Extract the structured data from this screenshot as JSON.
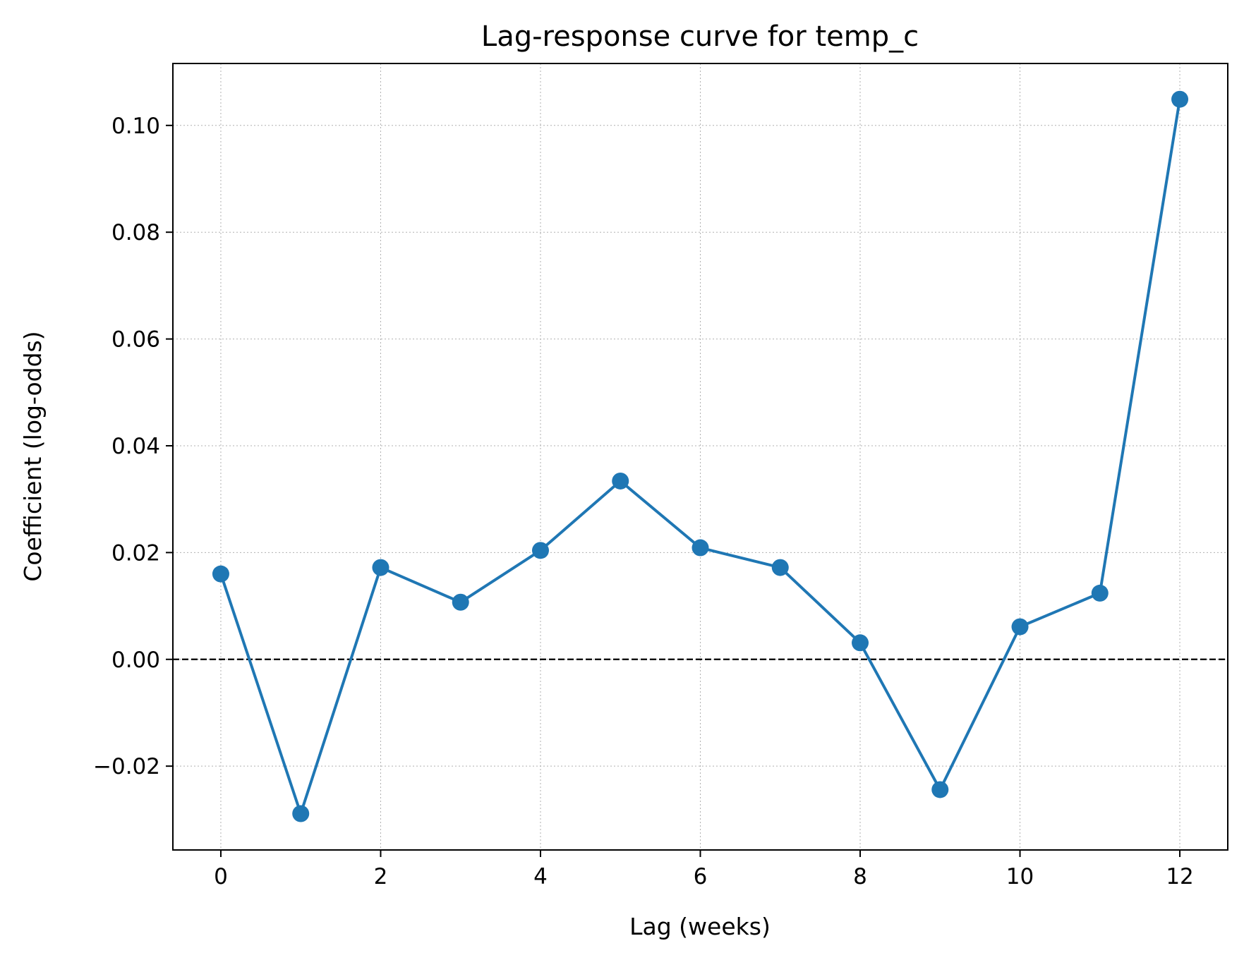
{
  "chart_data": {
    "type": "line",
    "title": "Lag-response curve for temp_c",
    "xlabel": "Lag (weeks)",
    "ylabel": "Coefficient (log-odds)",
    "xlim": [
      -0.6,
      12.6
    ],
    "ylim": [
      -0.0357,
      0.1116
    ],
    "xticks": [
      0,
      2,
      4,
      6,
      8,
      10,
      12
    ],
    "xtick_labels": [
      "0",
      "2",
      "4",
      "6",
      "8",
      "10",
      "12"
    ],
    "yticks": [
      -0.02,
      0.0,
      0.02,
      0.04,
      0.06,
      0.08,
      0.1
    ],
    "ytick_labels": [
      "−0.02",
      "0.00",
      "0.02",
      "0.04",
      "0.06",
      "0.08",
      "0.10"
    ],
    "grid": true,
    "reference_line": {
      "y": 0.0,
      "style": "dashed",
      "color": "#000000"
    },
    "series": [
      {
        "color": "#1f77b4",
        "marker": "circle",
        "x": [
          0,
          1,
          2,
          3,
          4,
          5,
          6,
          7,
          8,
          9,
          10,
          11,
          12
        ],
        "y": [
          0.016,
          -0.0289,
          0.0172,
          0.0107,
          0.0204,
          0.0334,
          0.0209,
          0.0172,
          0.0031,
          -0.0244,
          0.0061,
          0.0124,
          0.1049
        ]
      }
    ]
  }
}
